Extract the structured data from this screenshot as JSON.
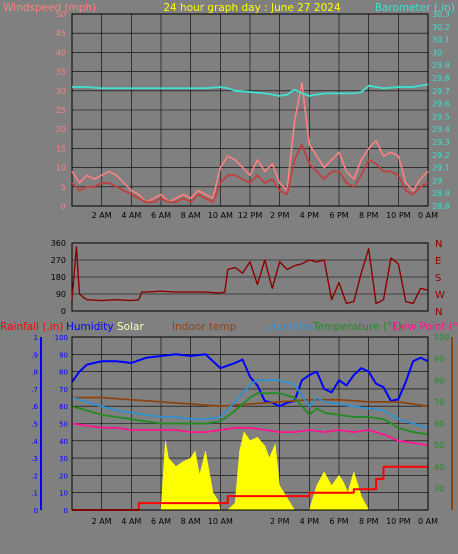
{
  "header": {
    "title": "24 hour graph day : June 27 2024",
    "left_label": "Windspeed (mph)",
    "right_label": "Barometer (.in)"
  },
  "colors": {
    "background": "#808080",
    "grid": "#000000",
    "title": "#ffff00",
    "wind_label": "#ff8080",
    "baro_label": "#40e0d0",
    "wind_gust": "#ff8080",
    "wind_avg": "#c04040",
    "barometer": "#40e0d0",
    "wind_dir": "#8b0000",
    "rain": "#ff0000",
    "humidity": "#0000ff",
    "solar": "#ffff00",
    "indoor": "#8b4513",
    "humidex": "#3090d0",
    "temperature": "#228b22",
    "dewpoint": "#ff1493"
  },
  "chart_data": [
    {
      "type": "line",
      "name": "wind-barometer",
      "title": "24 hour graph day : June 27 2024",
      "ylabel": "Windspeed (mph)",
      "y2label": "Barometer (.in)",
      "ylim": [
        0,
        50
      ],
      "yticks": [
        0,
        5,
        10,
        15,
        20,
        25,
        30,
        35,
        40,
        45,
        50
      ],
      "y2lim": [
        28.8,
        30.3
      ],
      "y2ticks": [
        "28.8",
        "28.9",
        "29",
        "29.1",
        "29.2",
        "29.3",
        "29.4",
        "29.5",
        "29.6",
        "29.7",
        "29.8",
        "29.9",
        "30",
        "30.1",
        "30.2",
        "30.3"
      ],
      "x_tick_labels": [
        "2 AM",
        "4 AM",
        "6 AM",
        "8 AM",
        "10 AM",
        "12 PM",
        "2 PM",
        "4 PM",
        "6 PM",
        "8 PM",
        "10 PM",
        "0 AM"
      ],
      "x_tick_hours": [
        2,
        4,
        6,
        8,
        10,
        12,
        14,
        16,
        18,
        20,
        22,
        24
      ],
      "grid": true,
      "series": [
        {
          "name": "Gust",
          "color": "#ff8080",
          "x": [
            0,
            0.5,
            1,
            1.5,
            2,
            2.5,
            3,
            3.5,
            4,
            4.5,
            5,
            5.5,
            6,
            6.5,
            7,
            7.5,
            8,
            8.5,
            9,
            9.5,
            10,
            10.5,
            11,
            11.5,
            12,
            12.5,
            13,
            13.5,
            14,
            14.5,
            15,
            15.5,
            16,
            16.5,
            17,
            17.5,
            18,
            18.5,
            19,
            19.5,
            20,
            20.5,
            21,
            21.5,
            22,
            22.5,
            23,
            23.5,
            24
          ],
          "values": [
            9,
            6,
            8,
            7,
            8,
            9,
            8,
            6,
            4,
            3,
            1,
            2,
            3,
            1,
            2,
            3,
            2,
            4,
            3,
            2,
            10,
            13,
            12,
            10,
            8,
            12,
            9,
            11,
            6,
            4,
            22,
            32,
            16,
            13,
            10,
            12,
            14,
            9,
            7,
            12,
            15,
            17,
            13,
            14,
            13,
            6,
            4,
            7,
            9
          ]
        },
        {
          "name": "Wind",
          "color": "#c04040",
          "x": [
            0,
            0.5,
            1,
            1.5,
            2,
            2.5,
            3,
            3.5,
            4,
            4.5,
            5,
            5.5,
            6,
            6.5,
            7,
            7.5,
            8,
            8.5,
            9,
            9.5,
            10,
            10.5,
            11,
            11.5,
            12,
            12.5,
            13,
            13.5,
            14,
            14.5,
            15,
            15.5,
            16,
            16.5,
            17,
            17.5,
            18,
            18.5,
            19,
            19.5,
            20,
            20.5,
            21,
            21.5,
            22,
            22.5,
            23,
            23.5,
            24
          ],
          "values": [
            6,
            4,
            5,
            5,
            6,
            6,
            5,
            4,
            3,
            2,
            1,
            1,
            2,
            1,
            1,
            2,
            1,
            3,
            2,
            1,
            6,
            8,
            8,
            7,
            6,
            8,
            6,
            7,
            4,
            3,
            12,
            16,
            11,
            9,
            7,
            9,
            9,
            6,
            5,
            8,
            12,
            11,
            9,
            9,
            8,
            4,
            3,
            5,
            6
          ]
        },
        {
          "name": "Barometer",
          "color": "#40e0d0",
          "axis": "right",
          "x": [
            0,
            1,
            2,
            3,
            4,
            5,
            6,
            7,
            8,
            9,
            10,
            10.5,
            11,
            12,
            13,
            14,
            14.5,
            15,
            15.5,
            16,
            17,
            18,
            19,
            19.5,
            20,
            21,
            22,
            23,
            24
          ],
          "values": [
            29.73,
            29.73,
            29.72,
            29.72,
            29.72,
            29.72,
            29.72,
            29.72,
            29.72,
            29.72,
            29.73,
            29.72,
            29.7,
            29.69,
            29.68,
            29.66,
            29.67,
            29.71,
            29.68,
            29.66,
            29.68,
            29.68,
            29.68,
            29.69,
            29.74,
            29.72,
            29.73,
            29.73,
            29.75
          ]
        }
      ]
    },
    {
      "type": "line",
      "name": "wind-direction",
      "ylim": [
        0,
        360
      ],
      "yticks": [
        0,
        90,
        180,
        270,
        360
      ],
      "right_labels": [
        "N",
        "W",
        "S",
        "E",
        "N"
      ],
      "grid": true,
      "series": [
        {
          "name": "Direction",
          "color": "#8b0000",
          "x": [
            0,
            0.3,
            0.5,
            0.8,
            1,
            2,
            3,
            4,
            4.5,
            4.7,
            5,
            6,
            7,
            8,
            9,
            10,
            10.3,
            10.5,
            11,
            11.5,
            12,
            12.5,
            13,
            13.5,
            14,
            14.5,
            15,
            15.5,
            16,
            16.5,
            17,
            17.5,
            18,
            18.5,
            19,
            19.5,
            20,
            20.5,
            21,
            21.5,
            22,
            22.5,
            23,
            23.5,
            24
          ],
          "values": [
            60,
            340,
            90,
            70,
            60,
            55,
            60,
            55,
            60,
            100,
            100,
            105,
            100,
            100,
            100,
            95,
            100,
            220,
            230,
            200,
            260,
            140,
            270,
            120,
            260,
            220,
            240,
            250,
            270,
            260,
            270,
            60,
            150,
            40,
            50,
            200,
            330,
            40,
            60,
            280,
            250,
            50,
            40,
            120,
            110
          ]
        }
      ]
    },
    {
      "type": "line",
      "name": "rain-humidity-temperature",
      "legend": [
        "Rainfall (.in)",
        "Humidity",
        "Solar",
        "Indoor temp",
        "Humidex",
        "Temperature (°F)",
        "Dew Point (°F)"
      ],
      "ylim": [
        0,
        1
      ],
      "yticks": [
        "0",
        ".1",
        ".2",
        ".3",
        ".4",
        ".5",
        ".6",
        ".7",
        ".8",
        ".9",
        "1"
      ],
      "y_inner_ticks": [
        "0",
        "10",
        "20",
        "30",
        "40",
        "50",
        "60",
        "70",
        "80",
        "90",
        "100"
      ],
      "y2lim": [
        20,
        100
      ],
      "y2ticks": [
        "30",
        "40",
        "50",
        "60",
        "70",
        "80",
        "90",
        "100"
      ],
      "x_tick_labels": [
        "2 AM",
        "4 AM",
        "6 AM",
        "8 AM",
        "10 AM",
        "2 PM",
        "4 PM",
        "6 PM",
        "8 PM",
        "10 PM",
        "0 AM"
      ],
      "x_tick_hours": [
        2,
        4,
        6,
        8,
        10,
        14,
        16,
        18,
        20,
        22,
        24
      ],
      "grid": true,
      "series": [
        {
          "name": "Humidity",
          "color": "#0000ff",
          "axis": "inner",
          "x": [
            0,
            0.5,
            1,
            2,
            3,
            4,
            5,
            6,
            7,
            8,
            9,
            10,
            11,
            11.5,
            12,
            12.5,
            13,
            13.5,
            14,
            14.5,
            15,
            15.5,
            16,
            16.5,
            17,
            17.5,
            18,
            18.5,
            19,
            19.5,
            20,
            20.5,
            21,
            21.5,
            22,
            22.5,
            23,
            23.5,
            24
          ],
          "values": [
            74,
            80,
            84,
            86,
            86,
            85,
            88,
            89,
            90,
            89,
            90,
            82,
            85,
            87,
            77,
            72,
            63,
            62,
            60,
            62,
            63,
            75,
            78,
            80,
            70,
            68,
            75,
            72,
            78,
            82,
            80,
            73,
            71,
            63,
            64,
            74,
            86,
            88,
            86
          ]
        },
        {
          "name": "Indoor temp",
          "color": "#8b4513",
          "axis": "right",
          "x": [
            0,
            2,
            4,
            6,
            8,
            10,
            12,
            14,
            16,
            18,
            20,
            22,
            24
          ],
          "values": [
            72,
            72,
            71,
            70,
            69,
            68,
            69,
            70,
            71,
            71,
            70,
            70,
            68
          ]
        },
        {
          "name": "Humidex",
          "color": "#3090d0",
          "axis": "right",
          "x": [
            0,
            1,
            2,
            3,
            4,
            5,
            6,
            7,
            8,
            9,
            10,
            11,
            12,
            12.5,
            13,
            14,
            15,
            16,
            16.5,
            17,
            18,
            19,
            20,
            21,
            22,
            23,
            24
          ],
          "values": [
            72,
            70,
            68,
            66,
            65,
            64,
            63,
            63,
            62,
            62,
            63,
            70,
            78,
            80,
            80,
            80,
            78,
            68,
            72,
            70,
            69,
            68,
            67,
            66,
            62,
            60,
            58
          ]
        },
        {
          "name": "Temperature (°F)",
          "color": "#228b22",
          "axis": "right",
          "x": [
            0,
            1,
            2,
            3,
            4,
            5,
            6,
            7,
            8,
            9,
            10,
            11,
            12,
            12.5,
            13,
            14,
            15,
            16,
            16.5,
            17,
            18,
            19,
            20,
            21,
            22,
            23,
            24
          ],
          "values": [
            68,
            66,
            64,
            63,
            62,
            61,
            60,
            60,
            60,
            60,
            61,
            66,
            72,
            74,
            74,
            74,
            72,
            64,
            67,
            65,
            64,
            63,
            63,
            62,
            58,
            56,
            55
          ]
        },
        {
          "name": "Dew Point (°F)",
          "color": "#ff1493",
          "axis": "right",
          "x": [
            0,
            1,
            2,
            3,
            4,
            5,
            6,
            7,
            8,
            9,
            10,
            11,
            12,
            13,
            14,
            15,
            16,
            17,
            18,
            19,
            20,
            21,
            22,
            23,
            24
          ],
          "values": [
            60,
            59,
            58,
            58,
            57,
            57,
            57,
            57,
            56,
            56,
            57,
            58,
            58,
            57,
            56,
            56,
            57,
            56,
            57,
            56,
            57,
            55,
            52,
            51,
            50
          ]
        },
        {
          "name": "Solar",
          "color": "#ffff00",
          "axis": "inner",
          "x": [
            0,
            6,
            6.3,
            6.5,
            7,
            7.5,
            8,
            8.3,
            8.6,
            9,
            9.5,
            9.8,
            10,
            10.5,
            11,
            11.3,
            11.6,
            12,
            12.5,
            13,
            13.3,
            13.7,
            14,
            15,
            16,
            16.5,
            17,
            17.5,
            18,
            18.3,
            18.6,
            19,
            19.5,
            20,
            21,
            24
          ],
          "values": [
            0,
            0,
            40,
            30,
            25,
            28,
            30,
            34,
            20,
            34,
            10,
            6,
            0,
            0,
            4,
            34,
            45,
            40,
            42,
            37,
            30,
            38,
            14,
            0,
            0,
            14,
            22,
            14,
            20,
            16,
            10,
            22,
            8,
            0,
            0,
            0
          ]
        },
        {
          "name": "Rainfall (.in)",
          "color": "#ff0000",
          "axis": "left",
          "step": true,
          "x": [
            0,
            4,
            4.5,
            10,
            10.5,
            16,
            19,
            20.5,
            21,
            24
          ],
          "values": [
            0,
            0,
            0.04,
            0.04,
            0.08,
            0.1,
            0.12,
            0.18,
            0.25,
            0.25
          ]
        }
      ]
    }
  ]
}
